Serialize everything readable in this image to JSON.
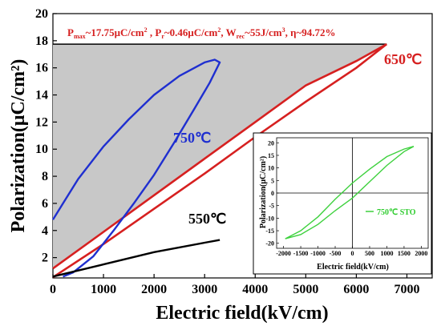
{
  "chart_data": [
    {
      "type": "line",
      "xlabel": "Electric field(kV/cm)",
      "ylabel": "Polarization(μC/cm²)",
      "xlim": [
        0,
        7500
      ],
      "ylim": [
        0.5,
        20
      ],
      "x_ticks": [
        "0",
        "1000",
        "2000",
        "3000",
        "4000",
        "5000",
        "6000",
        "7000"
      ],
      "y_ticks": [
        "2",
        "4",
        "6",
        "8",
        "10",
        "12",
        "14",
        "16",
        "18",
        "20"
      ],
      "annotation": {
        "pmax": "P",
        "pmax_sub": "max",
        "pmax_val": "~17.75μC/cm",
        "pmax_sup": "2",
        "pr": " , P",
        "pr_sub": "r",
        "pr_val": "~0.46μC/cm",
        "pr_sup": "2",
        "wrec": ", W",
        "wrec_sub": "rec",
        "wrec_val": "~55J/cm",
        "wrec_sup": "3",
        "eta": ", η~94.72%"
      },
      "series": [
        {
          "name": "650℃",
          "color": "#d62020",
          "upper": [
            [
              0,
              1.2
            ],
            [
              1000,
              3.9
            ],
            [
              2000,
              6.6
            ],
            [
              3000,
              9.3
            ],
            [
              4000,
              12.0
            ],
            [
              5000,
              14.7
            ],
            [
              6000,
              16.5
            ],
            [
              6600,
              17.75
            ]
          ],
          "lower": [
            [
              0,
              0.55
            ],
            [
              1000,
              3.0
            ],
            [
              2000,
              5.6
            ],
            [
              3000,
              8.2
            ],
            [
              4000,
              10.9
            ],
            [
              5000,
              13.5
            ],
            [
              6000,
              16.0
            ],
            [
              6600,
              17.75
            ]
          ]
        },
        {
          "name": "750℃",
          "color": "#1f2fd0",
          "upper": [
            [
              0,
              4.8
            ],
            [
              200,
              6.0
            ],
            [
              500,
              7.8
            ],
            [
              1000,
              10.2
            ],
            [
              1500,
              12.2
            ],
            [
              2000,
              14.0
            ],
            [
              2500,
              15.4
            ],
            [
              3000,
              16.4
            ],
            [
              3200,
              16.6
            ],
            [
              3300,
              16.4
            ]
          ],
          "lower": [
            [
              3300,
              16.4
            ],
            [
              3100,
              14.9
            ],
            [
              2800,
              13.0
            ],
            [
              2400,
              10.5
            ],
            [
              2000,
              8.1
            ],
            [
              1600,
              6.0
            ],
            [
              1200,
              4.0
            ],
            [
              800,
              2.1
            ],
            [
              400,
              0.9
            ],
            [
              200,
              0.6
            ]
          ]
        },
        {
          "name": "550℃",
          "color": "#000000",
          "points": [
            [
              0,
              0.6
            ],
            [
              1000,
              1.5
            ],
            [
              2000,
              2.4
            ],
            [
              3000,
              3.1
            ],
            [
              3300,
              3.3
            ]
          ]
        }
      ],
      "labels": {
        "s650": "650℃",
        "s750": "750℃",
        "s550": "550℃"
      },
      "max_line_y": 17.75
    },
    {
      "type": "line",
      "xlabel": "Electric field(kV/cm)",
      "ylabel": "Polarization(μC/cm²)",
      "xlim": [
        -2200,
        2200
      ],
      "ylim": [
        -22,
        22
      ],
      "x_ticks": [
        "-2000",
        "-1500",
        "-1000",
        "-500",
        "0",
        "500",
        "1000",
        "1500",
        "2000"
      ],
      "y_ticks": [
        "20",
        "15",
        "10",
        "5",
        "0",
        "-5",
        "-10",
        "-15",
        "-20"
      ],
      "legend": "750℃ STO",
      "series": [
        {
          "name": "750℃ STO",
          "color": "#3ed13e",
          "upper": [
            [
              -1950,
              -18.2
            ],
            [
              -1500,
              -15.0
            ],
            [
              -1000,
              -9.5
            ],
            [
              -500,
              -2.5
            ],
            [
              0,
              4.0
            ],
            [
              500,
              9.5
            ],
            [
              1000,
              14.5
            ],
            [
              1500,
              17.5
            ],
            [
              1780,
              18.6
            ]
          ],
          "lower": [
            [
              1780,
              18.6
            ],
            [
              1500,
              16.5
            ],
            [
              1000,
              11.0
            ],
            [
              500,
              4.5
            ],
            [
              0,
              -2.0
            ],
            [
              -500,
              -7.0
            ],
            [
              -1000,
              -12.5
            ],
            [
              -1500,
              -16.5
            ],
            [
              -1950,
              -18.2
            ]
          ]
        }
      ]
    }
  ]
}
